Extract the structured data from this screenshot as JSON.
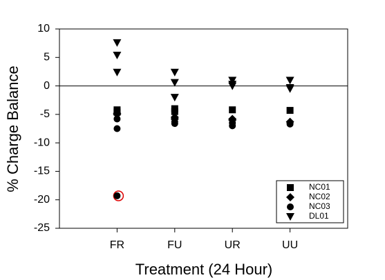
{
  "chart_data": {
    "type": "scatter",
    "xlabel": "Treatment (24 Hour)",
    "ylabel": "% Charge Balance",
    "xlim": [
      0,
      5
    ],
    "xticks": [
      {
        "value": 1,
        "label": "FR"
      },
      {
        "value": 2,
        "label": "FU"
      },
      {
        "value": 3,
        "label": "UR"
      },
      {
        "value": 4,
        "label": "UU"
      }
    ],
    "ylim": [
      -25,
      10
    ],
    "yticks": [
      -25,
      -20,
      -15,
      -10,
      -5,
      0,
      5,
      10
    ],
    "reference_line": 0,
    "legend": "lower right",
    "series": [
      {
        "name": "NC01",
        "color": "#000000",
        "marker": "square",
        "x": [
          1,
          1,
          2,
          2,
          3,
          4
        ],
        "y": [
          -4.2,
          -4.6,
          -4.0,
          -4.5,
          -4.2,
          -4.3
        ]
      },
      {
        "name": "NC02",
        "color": "#000000",
        "marker": "diamond",
        "x": [
          1,
          1,
          2,
          2,
          3,
          3,
          4
        ],
        "y": [
          -4.8,
          -5.0,
          -5.5,
          -5.8,
          -5.8,
          -6.0,
          -6.3
        ]
      },
      {
        "name": "NC03",
        "color": "#000000",
        "marker": "circle",
        "x": [
          1,
          1,
          1,
          2,
          2,
          3,
          3,
          4,
          4
        ],
        "y": [
          -5.8,
          -7.5,
          -19.3,
          -6.3,
          -6.6,
          -6.5,
          -7.0,
          -6.5,
          -6.7
        ]
      },
      {
        "name": "DL01",
        "color": "#000000",
        "marker": "triangle-down",
        "x": [
          1,
          1,
          1,
          2,
          2,
          2,
          3,
          3,
          3,
          4,
          4,
          4
        ],
        "y": [
          7.6,
          5.4,
          2.4,
          2.4,
          0.6,
          -2.0,
          1.0,
          0.3,
          0.0,
          1.0,
          -0.3,
          -0.5
        ]
      }
    ]
  }
}
